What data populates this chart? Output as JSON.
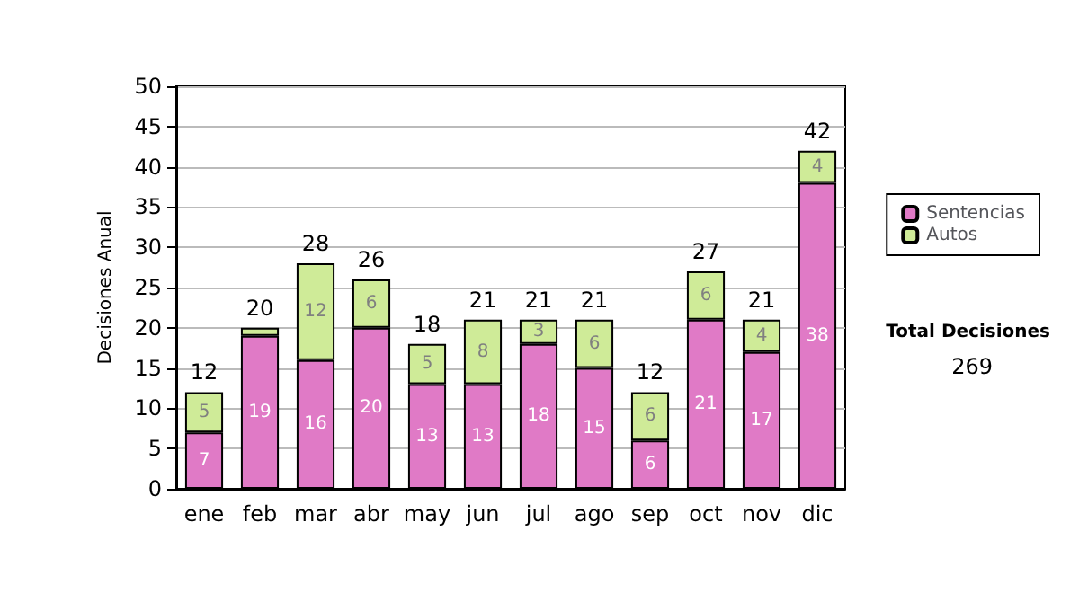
{
  "chart_data": {
    "type": "bar",
    "stacked": true,
    "ylabel": "Decisiones Anual",
    "categories": [
      "ene",
      "feb",
      "mar",
      "abr",
      "may",
      "jun",
      "jul",
      "ago",
      "sep",
      "oct",
      "nov",
      "dic"
    ],
    "series": [
      {
        "name": "Sentencias",
        "color": "#e07ac6",
        "values": [
          7,
          19,
          16,
          20,
          13,
          13,
          18,
          15,
          6,
          21,
          17,
          38
        ],
        "value_labels": [
          "7",
          "19",
          "16",
          "20",
          "13",
          "13",
          "18",
          "15",
          "6",
          "21",
          "17",
          "38"
        ]
      },
      {
        "name": "Autos",
        "color": "#cfeb98",
        "values": [
          5,
          1,
          12,
          6,
          5,
          8,
          3,
          6,
          6,
          6,
          4,
          4
        ],
        "value_labels": [
          "5",
          null,
          "12",
          "6",
          "5",
          "8",
          "3",
          "6",
          "6",
          "6",
          "4",
          "4"
        ]
      }
    ],
    "totals": [
      "12",
      "20",
      "28",
      "26",
      "18",
      "21",
      "21",
      "21",
      "12",
      "27",
      "21",
      "42"
    ],
    "ylim": [
      0,
      50
    ],
    "yticks": [
      0,
      5,
      10,
      15,
      20,
      25,
      30,
      35,
      40,
      45,
      50
    ],
    "grid": "y",
    "legend": "right",
    "annotations": [
      "Total Decisiones",
      "269"
    ]
  }
}
